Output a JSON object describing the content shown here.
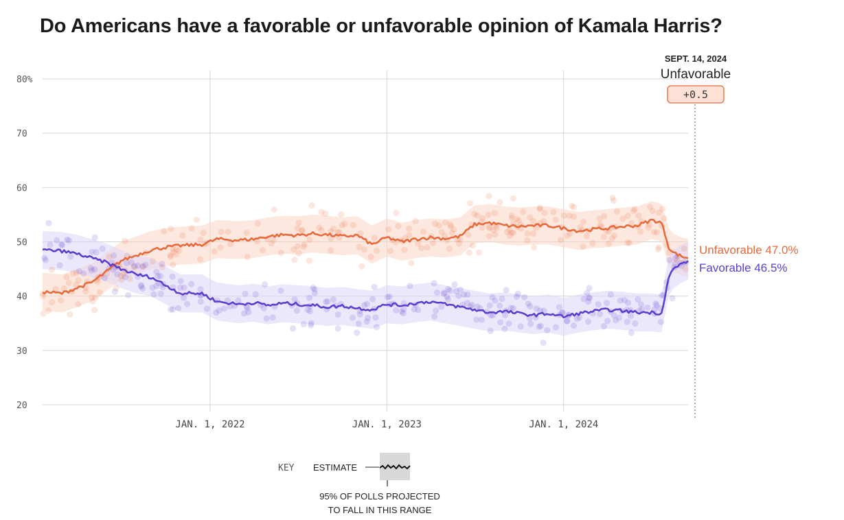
{
  "title": "Do Americans have a favorable or unfavorable opinion of Kamala Harris?",
  "chart_data": {
    "type": "line",
    "x_start": "2021-01-20",
    "x_end": "2024-09-14",
    "ylim": [
      20,
      80
    ],
    "y_ticks": [
      20,
      30,
      40,
      50,
      60,
      70,
      80
    ],
    "y_tick_labels": [
      "20",
      "30",
      "40",
      "50",
      "60",
      "70",
      "80%"
    ],
    "x_ticks": [
      "2022-01-01",
      "2023-01-01",
      "2024-01-01"
    ],
    "x_tick_labels": [
      "JAN. 1, 2022",
      "JAN. 1, 2023",
      "JAN. 1, 2024"
    ],
    "grid": true,
    "series": [
      {
        "name": "Unfavorable",
        "color": "#e8693a",
        "band_color": "#fbd5c4",
        "end_label": "Unfavorable 47.0%",
        "band_halfwidth": 3.5,
        "x": [
          "2021-01-20",
          "2021-03-01",
          "2021-04-01",
          "2021-05-01",
          "2021-06-01",
          "2021-07-01",
          "2021-08-01",
          "2021-09-01",
          "2021-10-01",
          "2021-11-01",
          "2021-12-15",
          "2022-01-15",
          "2022-03-01",
          "2022-04-01",
          "2022-05-01",
          "2022-06-01",
          "2022-07-01",
          "2022-08-01",
          "2022-09-01",
          "2022-10-01",
          "2022-11-01",
          "2022-12-01",
          "2023-01-01",
          "2023-02-01",
          "2023-03-01",
          "2023-04-01",
          "2023-05-01",
          "2023-06-01",
          "2023-07-01",
          "2023-08-01",
          "2023-09-01",
          "2023-10-01",
          "2023-11-01",
          "2023-12-01",
          "2024-01-01",
          "2024-02-01",
          "2024-03-01",
          "2024-04-01",
          "2024-05-01",
          "2024-06-01",
          "2024-07-01",
          "2024-07-21",
          "2024-07-28",
          "2024-08-05",
          "2024-08-15",
          "2024-09-01",
          "2024-09-14"
        ],
        "y": [
          40.8,
          40.5,
          41.5,
          42.5,
          44.5,
          46.5,
          47.5,
          48.5,
          49.0,
          49.3,
          49.5,
          50.5,
          50.3,
          50.5,
          51.0,
          51.3,
          51.2,
          51.5,
          51.3,
          51.0,
          51.2,
          49.5,
          50.8,
          50.0,
          50.5,
          50.8,
          50.6,
          51.0,
          53.2,
          53.5,
          53.0,
          52.8,
          53.0,
          53.0,
          52.5,
          52.0,
          52.3,
          52.5,
          52.8,
          53.0,
          54.0,
          53.5,
          51.5,
          49.0,
          48.0,
          47.3,
          47.0
        ]
      },
      {
        "name": "Favorable",
        "color": "#5b3fd0",
        "band_color": "#ddd6f7",
        "end_label": "Favorable 46.5%",
        "band_halfwidth": 3.5,
        "x": [
          "2021-01-20",
          "2021-03-01",
          "2021-04-01",
          "2021-05-01",
          "2021-06-01",
          "2021-07-01",
          "2021-08-01",
          "2021-09-01",
          "2021-10-01",
          "2021-11-01",
          "2021-12-15",
          "2022-01-15",
          "2022-03-01",
          "2022-04-01",
          "2022-05-01",
          "2022-06-01",
          "2022-07-01",
          "2022-08-01",
          "2022-09-01",
          "2022-10-01",
          "2022-11-01",
          "2022-12-01",
          "2023-01-01",
          "2023-02-01",
          "2023-03-01",
          "2023-04-01",
          "2023-05-01",
          "2023-06-01",
          "2023-07-01",
          "2023-08-01",
          "2023-09-01",
          "2023-10-01",
          "2023-11-01",
          "2023-12-01",
          "2024-01-01",
          "2024-02-01",
          "2024-03-01",
          "2024-04-01",
          "2024-05-01",
          "2024-06-01",
          "2024-07-01",
          "2024-07-21",
          "2024-07-28",
          "2024-08-05",
          "2024-08-15",
          "2024-09-01",
          "2024-09-14"
        ],
        "y": [
          48.5,
          48.3,
          47.8,
          47.0,
          46.2,
          45.0,
          44.0,
          43.5,
          42.0,
          40.5,
          40.5,
          39.0,
          38.5,
          38.8,
          38.3,
          38.7,
          38.5,
          38.3,
          38.0,
          38.2,
          37.8,
          37.5,
          38.5,
          38.3,
          38.7,
          39.0,
          38.5,
          38.0,
          37.5,
          37.0,
          37.2,
          36.8,
          36.5,
          36.8,
          36.2,
          36.8,
          37.2,
          37.5,
          37.3,
          37.0,
          37.0,
          36.8,
          40.0,
          43.5,
          45.0,
          46.0,
          46.5
        ]
      }
    ],
    "annotation": {
      "date_label": "SEPT. 14, 2024",
      "series_label": "Unfavorable",
      "margin_label": "+0.5"
    },
    "key": {
      "key_label": "KEY",
      "estimate_label": "ESTIMATE",
      "range_label_line1": "95% OF POLLS PROJECTED",
      "range_label_line2": "TO FALL IN THIS RANGE"
    }
  }
}
